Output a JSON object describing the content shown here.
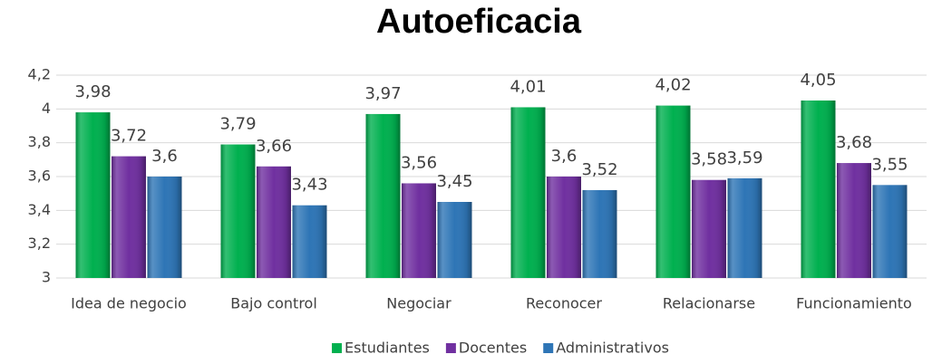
{
  "chart_data": {
    "type": "bar",
    "title": "Autoeficacia",
    "categories": [
      "Idea de negocio",
      "Bajo control",
      "Negociar",
      "Reconocer",
      "Relacionarse",
      "Funcionamiento"
    ],
    "series": [
      {
        "name": "Estudiantes",
        "color": "#00b04f",
        "values": [
          3.98,
          3.79,
          3.97,
          4.01,
          4.02,
          4.05
        ],
        "value_labels": [
          "3,98",
          "3,79",
          "3,97",
          "4,01",
          "4,02",
          "4,05"
        ]
      },
      {
        "name": "Docentes",
        "color": "#7030a0",
        "values": [
          3.72,
          3.66,
          3.56,
          3.6,
          3.58,
          3.68
        ],
        "value_labels": [
          "3,72",
          "3,66",
          "3,56",
          "3,6",
          "3,58",
          "3,68"
        ]
      },
      {
        "name": "Administrativos",
        "color": "#2e75b6",
        "values": [
          3.6,
          3.43,
          3.45,
          3.52,
          3.59,
          3.55
        ],
        "value_labels": [
          "3,6",
          "3,43",
          "3,45",
          "3,52",
          "3,59",
          "3,55"
        ]
      }
    ],
    "ylim": [
      3,
      4.2
    ],
    "yticks": [
      {
        "value": 4.2,
        "label": "4,2"
      },
      4,
      {
        "value": 3.8,
        "label": "3,8"
      },
      {
        "value": 3.6,
        "label": "3,6"
      },
      {
        "value": 3.4,
        "label": "3,4"
      },
      {
        "value": 3.2,
        "label": "3,2"
      },
      3
    ],
    "grid": true,
    "legend": "bottom"
  }
}
